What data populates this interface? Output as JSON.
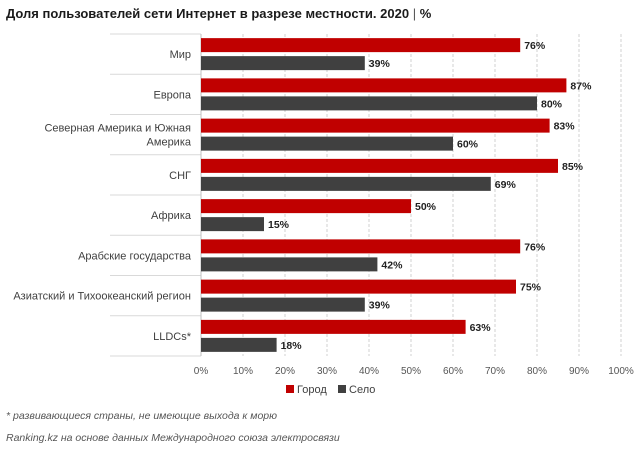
{
  "header": {
    "title": "Доля пользователей сети Интернет в разрезе местности. 2020",
    "separator": "|",
    "unit": "%"
  },
  "footer": {
    "note": "* развивающиеся страны, не имеющие выхода к морю",
    "source": "Ranking.kz на основе данных Международного союза электросвязи"
  },
  "chart_data": {
    "type": "bar",
    "orientation": "horizontal",
    "categories": [
      [
        "Мир"
      ],
      [
        "Европа"
      ],
      [
        "Северная Америка и Южная",
        "Америка"
      ],
      [
        "СНГ"
      ],
      [
        "Африка"
      ],
      [
        "Арабские государства"
      ],
      [
        "Азиатский и Тихоокеанский регион"
      ],
      [
        "LLDCs*"
      ]
    ],
    "series": [
      {
        "name": "Город",
        "color": "#c00000",
        "values": [
          76,
          87,
          83,
          85,
          50,
          76,
          75,
          63
        ]
      },
      {
        "name": "Село",
        "color": "#404040",
        "values": [
          39,
          80,
          60,
          69,
          15,
          42,
          39,
          18
        ]
      }
    ],
    "xlim": [
      0,
      100
    ],
    "xticks": [
      "0%",
      "10%",
      "20%",
      "30%",
      "40%",
      "50%",
      "60%",
      "70%",
      "80%",
      "90%",
      "100%"
    ],
    "value_suffix": "%",
    "grid": true,
    "legend_position": "bottom"
  }
}
